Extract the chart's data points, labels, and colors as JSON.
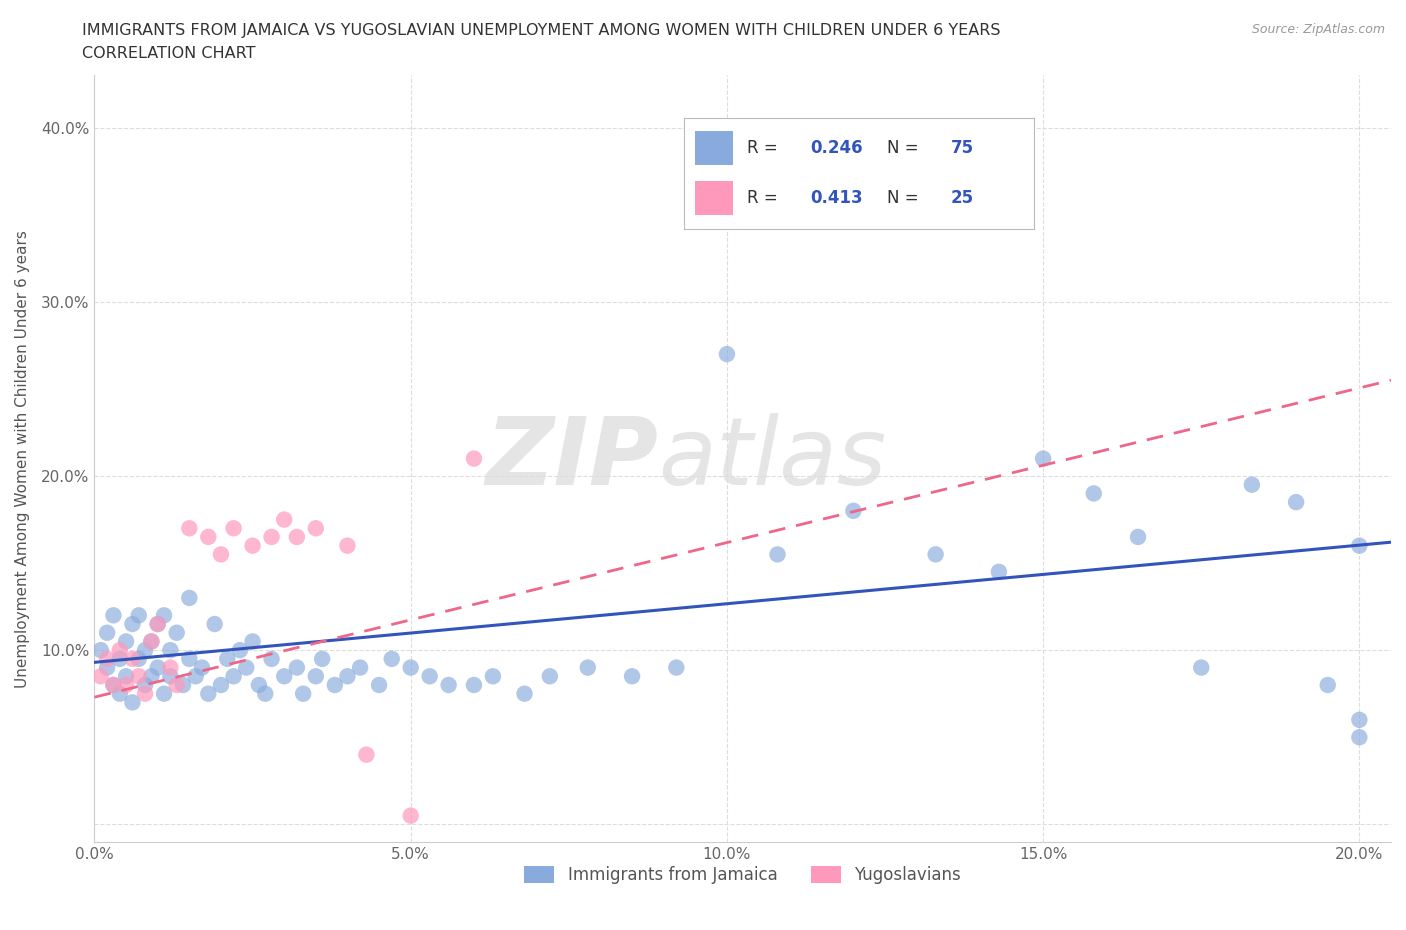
{
  "title_line1": "IMMIGRANTS FROM JAMAICA VS YUGOSLAVIAN UNEMPLOYMENT AMONG WOMEN WITH CHILDREN UNDER 6 YEARS",
  "title_line2": "CORRELATION CHART",
  "source": "Source: ZipAtlas.com",
  "ylabel": "Unemployment Among Women with Children Under 6 years",
  "xlim": [
    0.0,
    0.205
  ],
  "ylim": [
    -0.01,
    0.43
  ],
  "xticks": [
    0.0,
    0.05,
    0.1,
    0.15,
    0.2
  ],
  "xticklabels": [
    "0.0%",
    "5.0%",
    "10.0%",
    "15.0%",
    "20.0%"
  ],
  "yticks": [
    0.0,
    0.1,
    0.2,
    0.3,
    0.4
  ],
  "yticklabels": [
    "",
    "10.0%",
    "20.0%",
    "30.0%",
    "40.0%"
  ],
  "blue_scatter_color": "#88AADD",
  "pink_scatter_color": "#FF99BB",
  "blue_line_color": "#3355BB",
  "pink_line_color": "#EE6688",
  "blue_label": "Immigrants from Jamaica",
  "pink_label": "Yugoslavians",
  "R_blue": "0.246",
  "N_blue": "75",
  "R_pink": "0.413",
  "N_pink": "25",
  "blue_x": [
    0.001,
    0.002,
    0.002,
    0.003,
    0.003,
    0.004,
    0.004,
    0.005,
    0.005,
    0.006,
    0.006,
    0.007,
    0.007,
    0.008,
    0.008,
    0.009,
    0.009,
    0.01,
    0.01,
    0.011,
    0.011,
    0.012,
    0.012,
    0.013,
    0.014,
    0.015,
    0.015,
    0.016,
    0.017,
    0.018,
    0.019,
    0.02,
    0.021,
    0.022,
    0.023,
    0.024,
    0.025,
    0.026,
    0.027,
    0.028,
    0.03,
    0.032,
    0.033,
    0.035,
    0.036,
    0.038,
    0.04,
    0.042,
    0.045,
    0.047,
    0.05,
    0.053,
    0.056,
    0.06,
    0.063,
    0.068,
    0.072,
    0.078,
    0.085,
    0.092,
    0.1,
    0.108,
    0.12,
    0.133,
    0.143,
    0.15,
    0.158,
    0.165,
    0.175,
    0.183,
    0.19,
    0.195,
    0.2,
    0.2,
    0.2
  ],
  "blue_y": [
    0.1,
    0.09,
    0.11,
    0.08,
    0.12,
    0.075,
    0.095,
    0.085,
    0.105,
    0.07,
    0.115,
    0.095,
    0.12,
    0.08,
    0.1,
    0.105,
    0.085,
    0.09,
    0.115,
    0.075,
    0.12,
    0.085,
    0.1,
    0.11,
    0.08,
    0.095,
    0.13,
    0.085,
    0.09,
    0.075,
    0.115,
    0.08,
    0.095,
    0.085,
    0.1,
    0.09,
    0.105,
    0.08,
    0.075,
    0.095,
    0.085,
    0.09,
    0.075,
    0.085,
    0.095,
    0.08,
    0.085,
    0.09,
    0.08,
    0.095,
    0.09,
    0.085,
    0.08,
    0.08,
    0.085,
    0.075,
    0.085,
    0.09,
    0.085,
    0.09,
    0.27,
    0.155,
    0.18,
    0.155,
    0.145,
    0.21,
    0.19,
    0.165,
    0.09,
    0.195,
    0.185,
    0.08,
    0.16,
    0.06,
    0.05
  ],
  "pink_x": [
    0.001,
    0.002,
    0.003,
    0.004,
    0.005,
    0.006,
    0.007,
    0.008,
    0.009,
    0.01,
    0.012,
    0.013,
    0.015,
    0.018,
    0.02,
    0.022,
    0.025,
    0.028,
    0.03,
    0.032,
    0.035,
    0.04,
    0.043,
    0.05,
    0.06
  ],
  "pink_y": [
    0.085,
    0.095,
    0.08,
    0.1,
    0.08,
    0.095,
    0.085,
    0.075,
    0.105,
    0.115,
    0.09,
    0.08,
    0.17,
    0.165,
    0.155,
    0.17,
    0.16,
    0.165,
    0.175,
    0.165,
    0.17,
    0.16,
    0.04,
    0.005,
    0.21
  ],
  "blue_trend_x": [
    0.0,
    0.205
  ],
  "blue_trend_y": [
    0.093,
    0.162
  ],
  "pink_trend_x": [
    0.0,
    0.205
  ],
  "pink_trend_y": [
    0.073,
    0.255
  ],
  "watermark1": "ZIP",
  "watermark2": "atlas",
  "background_color": "#FFFFFF",
  "grid_color": "#DDDDDD",
  "legend_text_dark": "#333333",
  "legend_value_color": "#3355BB"
}
